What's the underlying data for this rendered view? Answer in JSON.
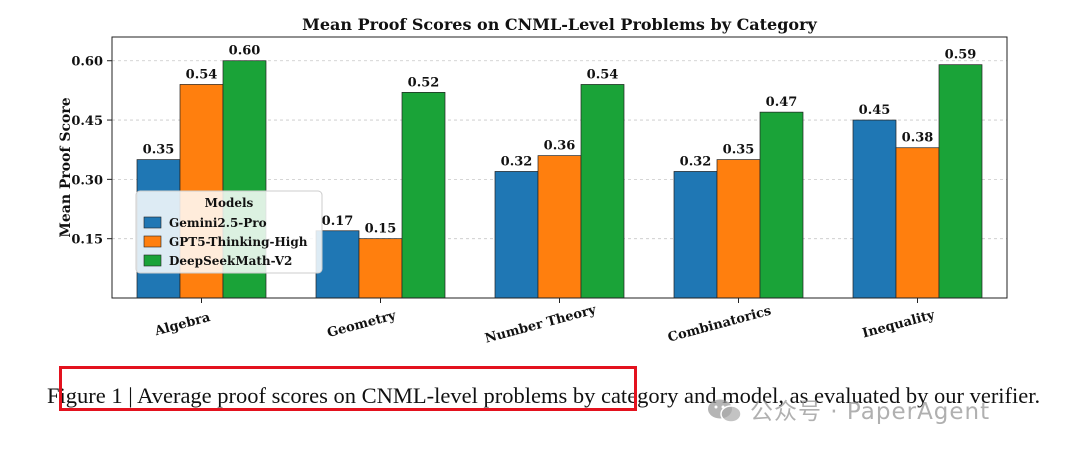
{
  "chart_data": {
    "type": "bar",
    "title": "Mean Proof Scores on CNML-Level Problems by Category",
    "xlabel": "",
    "ylabel": "Mean Proof Score",
    "categories": [
      "Algebra",
      "Geometry",
      "Number Theory",
      "Combinatorics",
      "Inequality"
    ],
    "series": [
      {
        "name": "Gemini2.5-Pro",
        "color": "#1f77b4",
        "values": [
          0.35,
          0.17,
          0.32,
          0.32,
          0.45
        ]
      },
      {
        "name": "GPT5-Thinking-High",
        "color": "#ff7f0e",
        "values": [
          0.54,
          0.15,
          0.36,
          0.35,
          0.38
        ]
      },
      {
        "name": "DeepSeekMath-V2",
        "color": "#1aa338",
        "values": [
          0.6,
          0.52,
          0.54,
          0.47,
          0.59
        ]
      }
    ],
    "ylim": [
      0.0,
      0.66
    ],
    "yticks": [
      "0.15",
      "0.30",
      "0.45",
      "0.60"
    ],
    "data_labels": [
      [
        "0.35",
        "0.17",
        "0.32",
        "0.32",
        "0.45"
      ],
      [
        "0.54",
        "0.15",
        "0.36",
        "0.35",
        "0.38"
      ],
      [
        "0.60",
        "0.52",
        "0.54",
        "0.47",
        "0.59"
      ]
    ],
    "grid": true,
    "legend": {
      "title": "Models",
      "placement": "center-left"
    }
  },
  "caption": {
    "text": "Figure 1 | Average proof scores on CNML-level problems by category and model, as evaluated by our verifier."
  },
  "watermark": {
    "text": "公众号 · PaperAgent",
    "icon": "wechat-icon"
  }
}
